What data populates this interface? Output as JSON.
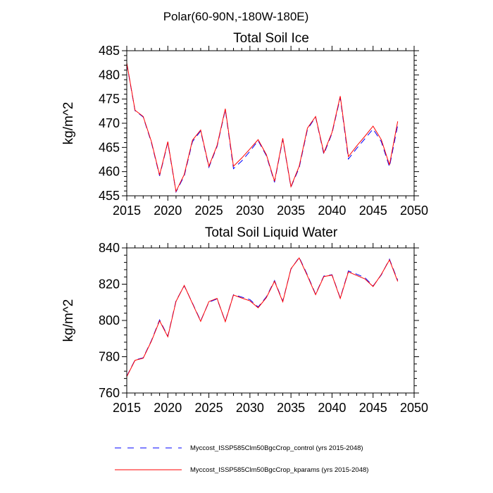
{
  "figure": {
    "suptitle": "Polar(60-90N,-180W-180E)",
    "legend": [
      {
        "label": "Myccost_ISSP585Clm50BgcCrop_control (yrs 2015-2048)",
        "color": "#0000ff",
        "style": "dashed"
      },
      {
        "label": "Myccost_ISSP585Clm50BgcCrop_kparams (yrs 2015-2048)",
        "color": "#ff0000",
        "style": "solid"
      }
    ]
  },
  "chart_data": [
    {
      "type": "line",
      "title": "Total Soil Ice",
      "xlabel": "",
      "ylabel": "kg/m^2",
      "xlim": [
        2015,
        2050
      ],
      "ylim": [
        455,
        485
      ],
      "xticks": [
        2015,
        2020,
        2025,
        2030,
        2035,
        2040,
        2045,
        2050
      ],
      "yticks": [
        455,
        460,
        465,
        470,
        475,
        480,
        485
      ],
      "grid": false,
      "x": [
        2015,
        2016,
        2017,
        2018,
        2019,
        2020,
        2021,
        2022,
        2023,
        2024,
        2025,
        2026,
        2027,
        2028,
        2029,
        2030,
        2031,
        2032,
        2033,
        2034,
        2035,
        2036,
        2037,
        2038,
        2039,
        2040,
        2041,
        2042,
        2043,
        2044,
        2045,
        2046,
        2047,
        2048
      ],
      "series": [
        {
          "color": "#0000ff",
          "style": "dashed",
          "values": [
            482.3,
            472.6,
            471.3,
            466.0,
            459.1,
            466.0,
            455.8,
            459.1,
            466.2,
            468.4,
            460.9,
            465.2,
            472.8,
            460.6,
            462.2,
            464.2,
            466.4,
            463.3,
            457.8,
            466.7,
            456.8,
            460.8,
            468.7,
            471.3,
            463.6,
            467.9,
            475.3,
            462.6,
            464.8,
            466.8,
            468.8,
            466.2,
            461.0,
            469.6
          ]
        },
        {
          "color": "#ff0000",
          "style": "solid",
          "values": [
            482.5,
            472.7,
            471.4,
            466.2,
            459.3,
            466.2,
            455.9,
            459.4,
            466.5,
            468.6,
            461.1,
            465.4,
            473.0,
            461.1,
            462.8,
            464.7,
            466.6,
            463.5,
            458.0,
            466.9,
            456.9,
            461.1,
            469.0,
            471.4,
            463.9,
            468.1,
            475.6,
            463.1,
            465.3,
            467.3,
            469.4,
            466.6,
            461.4,
            470.4
          ]
        }
      ]
    },
    {
      "type": "line",
      "title": "Total Soil Liquid Water",
      "xlabel": "",
      "ylabel": "kg/m^2",
      "xlim": [
        2015,
        2050
      ],
      "ylim": [
        760,
        840
      ],
      "xticks": [
        2015,
        2020,
        2025,
        2030,
        2035,
        2040,
        2045,
        2050
      ],
      "yticks": [
        760,
        780,
        800,
        820,
        840
      ],
      "grid": false,
      "x": [
        2015,
        2016,
        2017,
        2018,
        2019,
        2020,
        2021,
        2022,
        2023,
        2024,
        2025,
        2026,
        2027,
        2028,
        2029,
        2030,
        2031,
        2032,
        2033,
        2034,
        2035,
        2036,
        2037,
        2038,
        2039,
        2040,
        2041,
        2042,
        2043,
        2044,
        2045,
        2046,
        2047,
        2048
      ],
      "series": [
        {
          "color": "#0000ff",
          "style": "dashed",
          "values": [
            769.3,
            778.2,
            779.4,
            788.9,
            800.3,
            791.3,
            810.8,
            819.1,
            809.5,
            799.8,
            810.1,
            811.9,
            799.5,
            814.2,
            812.9,
            811.5,
            807.4,
            813.0,
            822.0,
            810.6,
            828.3,
            834.8,
            825.1,
            814.5,
            824.5,
            825.2,
            812.4,
            827.3,
            825.5,
            823.6,
            819.0,
            825.1,
            833.8,
            822.1
          ]
        },
        {
          "color": "#ff0000",
          "style": "solid",
          "values": [
            769.0,
            778.0,
            779.2,
            788.6,
            799.8,
            791.0,
            810.5,
            819.3,
            809.3,
            799.5,
            810.4,
            812.2,
            799.3,
            814.0,
            812.4,
            810.8,
            807.0,
            812.6,
            821.6,
            810.3,
            828.5,
            834.5,
            824.6,
            814.2,
            824.2,
            825.0,
            812.1,
            826.8,
            824.8,
            822.9,
            818.7,
            825.4,
            833.4,
            821.5
          ]
        }
      ]
    }
  ]
}
